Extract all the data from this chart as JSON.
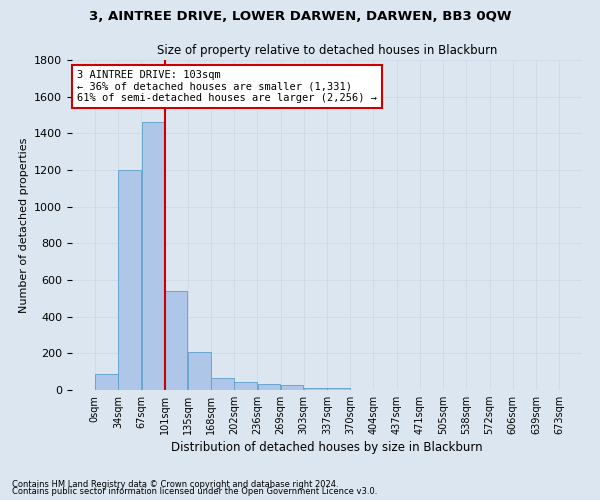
{
  "title": "3, AINTREE DRIVE, LOWER DARWEN, DARWEN, BB3 0QW",
  "subtitle": "Size of property relative to detached houses in Blackburn",
  "xlabel": "Distribution of detached houses by size in Blackburn",
  "ylabel": "Number of detached properties",
  "bar_values": [
    90,
    1200,
    1460,
    540,
    205,
    65,
    45,
    35,
    28,
    10,
    10,
    0,
    0,
    0,
    0,
    0,
    0,
    0,
    0,
    0
  ],
  "bin_labels": [
    "0sqm",
    "34sqm",
    "67sqm",
    "101sqm",
    "135sqm",
    "168sqm",
    "202sqm",
    "236sqm",
    "269sqm",
    "303sqm",
    "337sqm",
    "370sqm",
    "404sqm",
    "437sqm",
    "471sqm",
    "505sqm",
    "538sqm",
    "572sqm",
    "606sqm",
    "639sqm",
    "673sqm"
  ],
  "bar_color": "#aec6e8",
  "bar_edge_color": "#5a9fc9",
  "grid_color": "#d0d8e8",
  "bg_color": "#dce6f0",
  "property_line_color": "#cc0000",
  "annotation_text": "3 AINTREE DRIVE: 103sqm\n← 36% of detached houses are smaller (1,331)\n61% of semi-detached houses are larger (2,256) →",
  "annotation_box_color": "#ffffff",
  "annotation_box_edge": "#cc0000",
  "ylim": [
    0,
    1800
  ],
  "bin_width": 33.65,
  "n_bins": 20,
  "property_line_x": 101,
  "footnote1": "Contains HM Land Registry data © Crown copyright and database right 2024.",
  "footnote2": "Contains public sector information licensed under the Open Government Licence v3.0."
}
